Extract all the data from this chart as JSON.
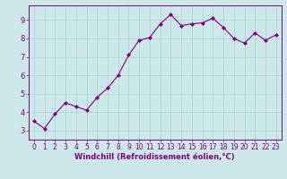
{
  "x": [
    0,
    1,
    2,
    3,
    4,
    5,
    6,
    7,
    8,
    9,
    10,
    11,
    12,
    13,
    14,
    15,
    16,
    17,
    18,
    19,
    20,
    21,
    22,
    23
  ],
  "y": [
    3.5,
    3.1,
    3.9,
    4.5,
    4.3,
    4.1,
    4.8,
    5.3,
    6.0,
    7.1,
    7.9,
    8.05,
    8.8,
    9.3,
    8.7,
    8.8,
    8.85,
    9.1,
    8.6,
    8.0,
    7.75,
    8.3,
    7.9,
    8.2
  ],
  "line_color": "#800080",
  "marker": "D",
  "marker_size": 2,
  "bg_color": "#cce8e8",
  "grid_color": "#aad0d0",
  "axis_bg": "#cce8e8",
  "xlabel": "Windchill (Refroidissement éolien,°C)",
  "ylabel": "",
  "title": "",
  "xlim": [
    -0.5,
    23.5
  ],
  "ylim": [
    2.5,
    9.8
  ],
  "yticks": [
    3,
    4,
    5,
    6,
    7,
    8,
    9
  ],
  "xticks": [
    0,
    1,
    2,
    3,
    4,
    5,
    6,
    7,
    8,
    9,
    10,
    11,
    12,
    13,
    14,
    15,
    16,
    17,
    18,
    19,
    20,
    21,
    22,
    23
  ],
  "tick_label_color": "#800080",
  "xlabel_color": "#800080",
  "border_color": "#800080",
  "tick_fontsize": 5.5,
  "xlabel_fontsize": 6.0,
  "linewidth": 0.8
}
